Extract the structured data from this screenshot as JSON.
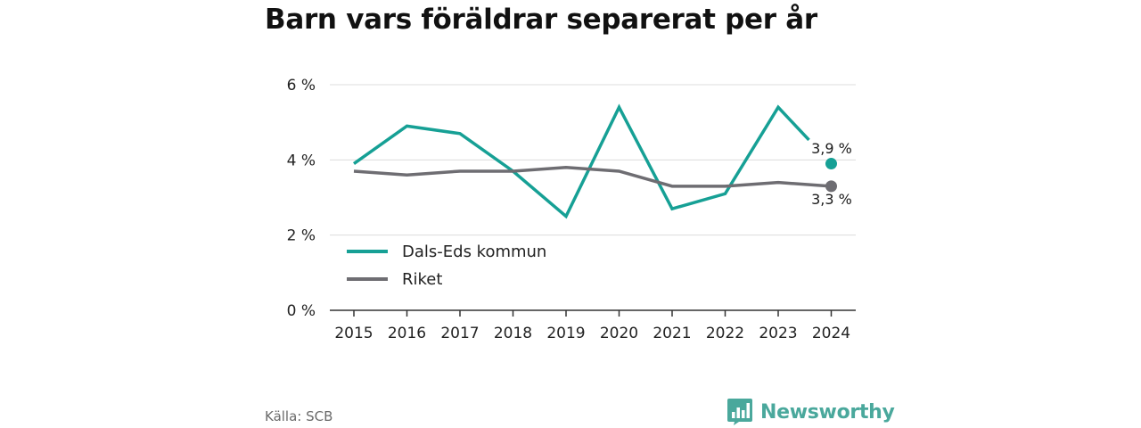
{
  "title": "Barn vars föräldrar separerat per år",
  "source": "Källa: SCB",
  "brand": {
    "name": "Newsworthy",
    "icon": "bar-chart-speech-bubble-icon",
    "color": "#4aa89c"
  },
  "chart_data": {
    "type": "line",
    "title": "Barn vars föräldrar separerat per år",
    "xlabel": "",
    "ylabel": "",
    "x": [
      "2015",
      "2016",
      "2017",
      "2018",
      "2019",
      "2020",
      "2021",
      "2022",
      "2023",
      "2024"
    ],
    "ylim": [
      0,
      6
    ],
    "yticks": [
      0,
      2,
      4,
      6
    ],
    "ytick_labels": [
      "0 %",
      "2 %",
      "4 %",
      "6 %"
    ],
    "grid": true,
    "legend_position": "bottom-left",
    "series": [
      {
        "name": "Dals-Eds kommun",
        "color": "#16a095",
        "values": [
          3.9,
          4.9,
          4.7,
          3.7,
          2.5,
          5.4,
          2.7,
          3.1,
          5.4,
          3.9
        ],
        "end_label": "3,9 %"
      },
      {
        "name": "Riket",
        "color": "#6e6d72",
        "values": [
          3.7,
          3.6,
          3.7,
          3.7,
          3.8,
          3.7,
          3.3,
          3.3,
          3.4,
          3.3
        ],
        "end_label": "3,3 %"
      }
    ]
  }
}
